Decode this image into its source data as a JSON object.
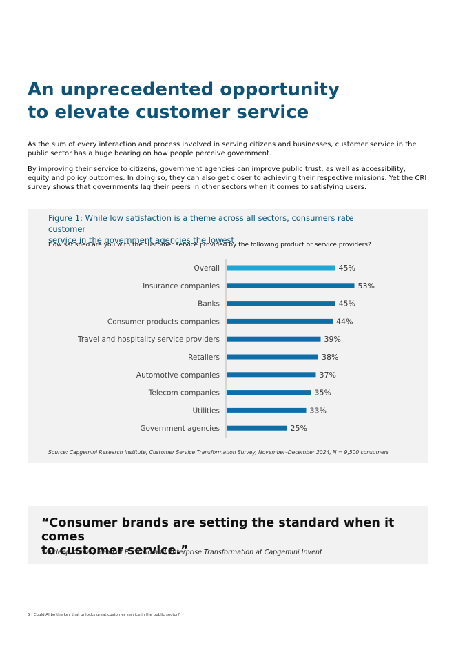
{
  "heading": {
    "line1": "An unprecedented opportunity",
    "line2": "to elevate customer service"
  },
  "paragraphs": {
    "p1": "As the sum of every interaction and process involved in serving citizens and businesses, customer service in the public sector has a huge bearing on how people perceive government.",
    "p2": "By improving their service to citizens, government agencies can improve public trust, as well as accessibility, equity and policy outcomes. In doing so, they can also get closer to achieving their respective missions. Yet the CRI survey shows that governments lag their peers in other sectors when it comes to satisfying users."
  },
  "figure": {
    "title_line1": "Figure 1: While low satisfaction is a theme across all sectors, consumers rate customer",
    "title_line2": "service in the government agencies the lowest",
    "question": "How satisfied are you with the customer service provided by the following product or service providers?",
    "source": "Source: Capgemini Research Institute, Customer Service Transformation Survey, November–December 2024, N = 9,500 consumers"
  },
  "chart_data": {
    "type": "bar",
    "orientation": "horizontal",
    "categories": [
      "Overall",
      "Insurance companies",
      "Banks",
      "Consumer products companies",
      "Travel and hospitality service providers",
      "Retailers",
      "Automotive companies",
      "Telecom companies",
      "Utilities",
      "Government agencies"
    ],
    "values": [
      45,
      53,
      45,
      44,
      39,
      38,
      37,
      35,
      33,
      25
    ],
    "data_labels": [
      "45%",
      "53%",
      "45%",
      "44%",
      "39%",
      "38%",
      "37%",
      "35%",
      "33%",
      "25%"
    ],
    "unit": "%",
    "title": "",
    "xlabel": "",
    "ylabel": "",
    "xlim": [
      0,
      60
    ],
    "colors": {
      "highlight": "#1ea6d6",
      "default": "#0e6ea8"
    },
    "highlight_index": 0,
    "grid": false
  },
  "quote": {
    "line1": "“Consumer brands are setting the standard when it comes",
    "line2": "to customer service.”",
    "author": "Sandeep Kumar, Head of Portfolio and Enterprise Transformation at Capgemini Invent"
  },
  "footer": {
    "text": "5 | Could AI be the key that unlocks great customer service in the public sector?"
  }
}
